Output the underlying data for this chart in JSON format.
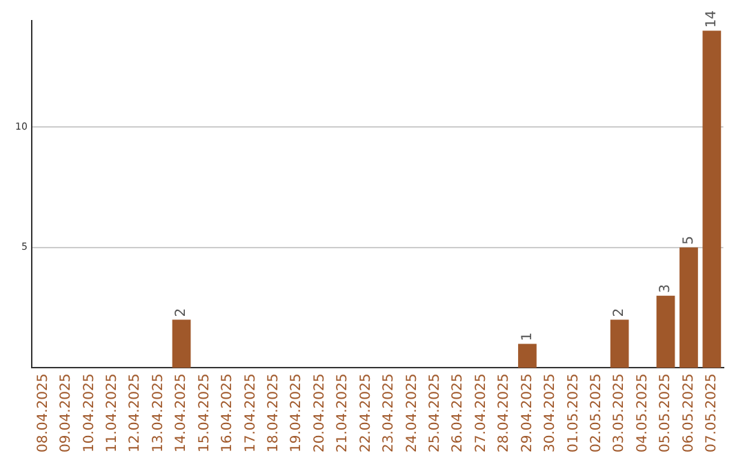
{
  "chart_data": {
    "type": "bar",
    "categories": [
      "08.04.2025",
      "09.04.2025",
      "10.04.2025",
      "11.04.2025",
      "12.04.2025",
      "13.04.2025",
      "14.04.2025",
      "15.04.2025",
      "16.04.2025",
      "17.04.2025",
      "18.04.2025",
      "19.04.2025",
      "20.04.2025",
      "21.04.2025",
      "22.04.2025",
      "23.04.2025",
      "24.04.2025",
      "25.04.2025",
      "26.04.2025",
      "27.04.2025",
      "28.04.2025",
      "29.04.2025",
      "30.04.2025",
      "01.05.2025",
      "02.05.2025",
      "03.05.2025",
      "04.05.2025",
      "05.05.2025",
      "06.05.2025",
      "07.05.2025"
    ],
    "values": [
      0,
      0,
      0,
      0,
      0,
      0,
      2,
      0,
      0,
      0,
      0,
      0,
      0,
      0,
      0,
      0,
      0,
      0,
      0,
      0,
      0,
      1,
      0,
      0,
      0,
      2,
      0,
      3,
      5,
      14
    ],
    "value_labels": [
      null,
      null,
      null,
      null,
      null,
      null,
      "2",
      null,
      null,
      null,
      null,
      null,
      null,
      null,
      null,
      null,
      null,
      null,
      null,
      null,
      null,
      "1",
      null,
      null,
      null,
      "2",
      null,
      "3",
      "5",
      "14"
    ],
    "color": "#a0582a",
    "ylim": [
      0,
      14.4
    ],
    "yticks": [
      5,
      10
    ],
    "grid": "y",
    "legend": false
  }
}
